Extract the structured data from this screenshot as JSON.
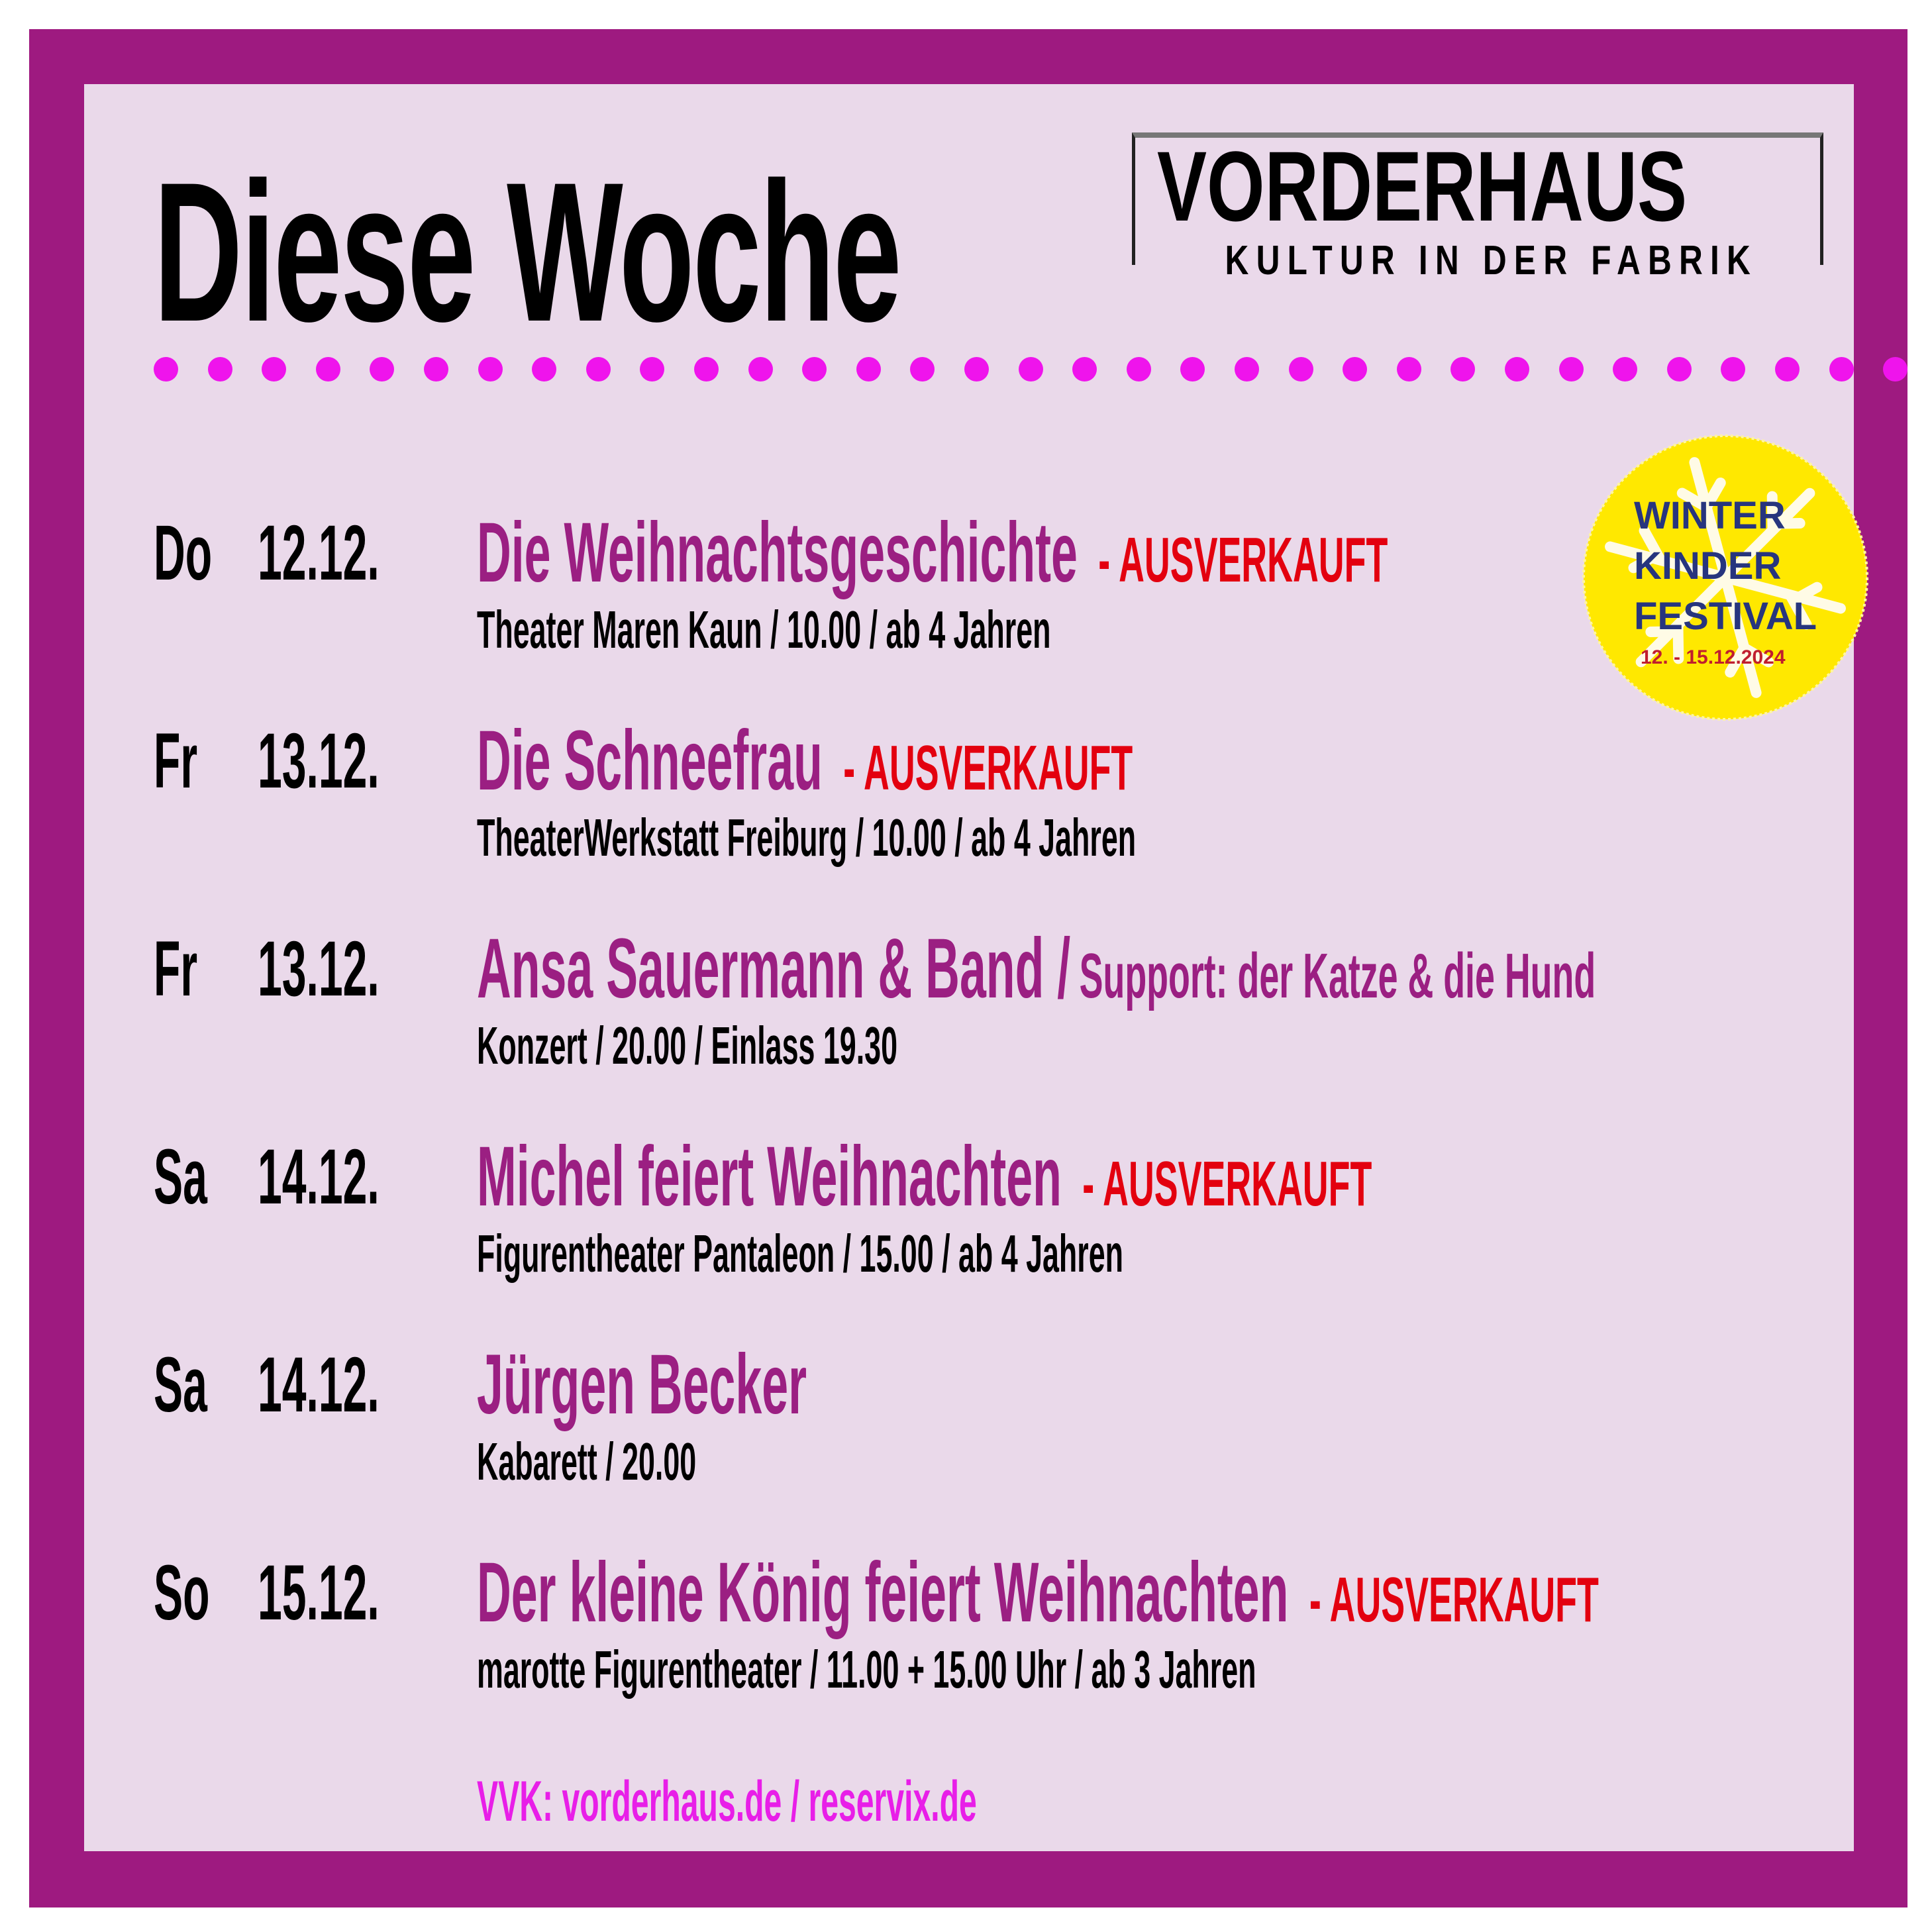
{
  "heading": "Diese Woche",
  "logo": {
    "name": "VORDERHAUS",
    "tagline": "KULTUR IN DER FABRIK"
  },
  "badge": {
    "line1": "WINTER",
    "line2": "KINDER",
    "line3": "FESTIVAL",
    "dates": "12. - 15.12.2024"
  },
  "colors": {
    "border": "#9e1a80",
    "panel": "#ead9ea",
    "event_title": "#9b1f82",
    "sold_out": "#e3000f",
    "dots": "#ef14ec",
    "badge": "#ffe800",
    "badge_text": "#27357e"
  },
  "events": [
    {
      "day": "Do",
      "date": "12.12.",
      "title": "Die Weihnachtsgeschichte",
      "status": "- AUSVERKAUFT",
      "support": "",
      "info": "Theater Maren Kaun / 10.00 / ab 4 Jahren"
    },
    {
      "day": "Fr",
      "date": "13.12.",
      "title": "Die Schneefrau",
      "status": "- AUSVERKAUFT",
      "support": "",
      "info": "TheaterWerkstatt Freiburg / 10.00 / ab 4 Jahren"
    },
    {
      "day": "Fr",
      "date": "13.12.",
      "title": "Ansa Sauermann & Band /",
      "status": "",
      "support": "Support: der Katze & die Hund",
      "info": "Konzert / 20.00 / Einlass 19.30"
    },
    {
      "day": "Sa",
      "date": "14.12.",
      "title": "Michel feiert Weihnachten",
      "status": "- AUSVERKAUFT",
      "support": "",
      "info": "Figurentheater Pantaleon / 15.00 / ab 4 Jahren"
    },
    {
      "day": "Sa",
      "date": "14.12.",
      "title": "Jürgen Becker",
      "status": "",
      "support": "",
      "info": "Kabarett / 20.00"
    },
    {
      "day": "So",
      "date": "15.12.",
      "title": "Der kleine König feiert Weihnachten",
      "status": "- AUSVERKAUFT",
      "support": "",
      "info": "marotte Figurentheater / 11.00 + 15.00 Uhr / ab 3 Jahren"
    }
  ],
  "presale": "VVK: vorderhaus.de / reservix.de"
}
